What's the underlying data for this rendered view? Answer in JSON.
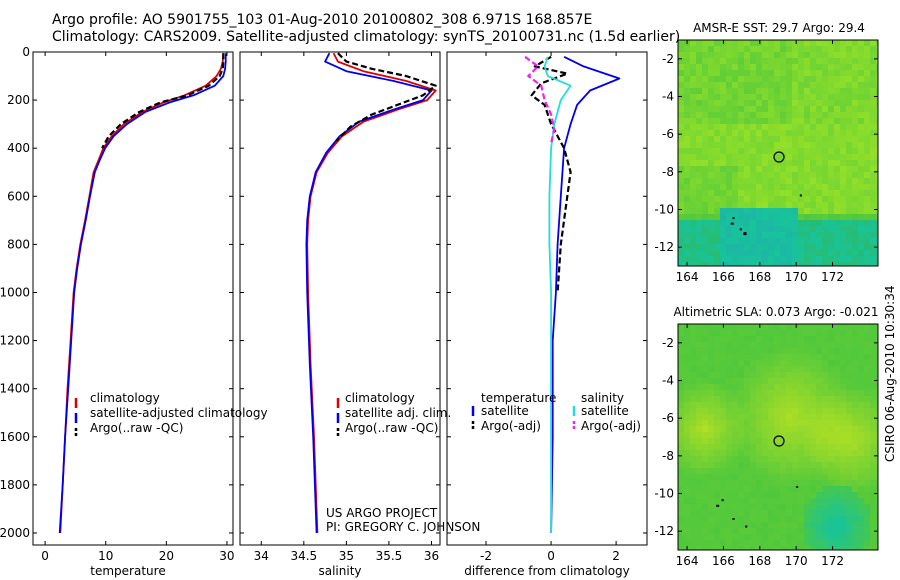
{
  "header": {
    "line1": "Argo profile: AO 5901755_103 01-Aug-2010 20100802_308 6.971S 168.857E",
    "line2": "Climatology: CARS2009. Satellite-adjusted climatology: synTS_20100731.nc (1.5d earlier)"
  },
  "credit": {
    "project": "US ARGO PROJECT",
    "pi": "PI: GREGORY C. JOHNSON",
    "stamp": "CSIRO 06-Aug-2010 10:30:34"
  },
  "colors": {
    "climatology": "#dd0000",
    "satellite_adjusted": "#0000ee",
    "argo": "#000000",
    "salinity_satellite": "#22dddd",
    "salinity_argo": "#ee22ee",
    "map_green": "#4fdb2c",
    "map_teal": "#18c49a"
  },
  "chart_data": [
    {
      "type": "line",
      "panel": "temperature",
      "xlabel": "temperature",
      "xlim": [
        -2,
        31
      ],
      "ylim": [
        2050,
        0
      ],
      "xticks": [
        "0",
        "10",
        "20",
        "30"
      ],
      "yticks": [
        "0",
        "200",
        "400",
        "600",
        "800",
        "1000",
        "1200",
        "1400",
        "1600",
        "1800",
        "2000"
      ],
      "grid": false,
      "legend": {
        "position": "bottom-right",
        "entries": [
          "climatology",
          "satellite-adjusted climatology",
          "Argo(..raw -QC)"
        ]
      },
      "series": [
        {
          "name": "climatology",
          "color": "#dd0000",
          "points": [
            [
              29.4,
              5
            ],
            [
              29.3,
              40
            ],
            [
              29.0,
              70
            ],
            [
              28.3,
              100
            ],
            [
              26.5,
              140
            ],
            [
              23.0,
              180
            ],
            [
              19.5,
              210
            ],
            [
              16.0,
              250
            ],
            [
              13.0,
              300
            ],
            [
              11.0,
              350
            ],
            [
              9.6,
              400
            ],
            [
              8.8,
              450
            ],
            [
              8.0,
              500
            ],
            [
              7.3,
              600
            ],
            [
              6.6,
              700
            ],
            [
              5.8,
              800
            ],
            [
              5.2,
              900
            ],
            [
              4.7,
              1000
            ],
            [
              4.2,
              1200
            ],
            [
              3.7,
              1400
            ],
            [
              3.3,
              1600
            ],
            [
              2.9,
              1800
            ],
            [
              2.5,
              2000
            ]
          ]
        },
        {
          "name": "satellite-adjusted climatology",
          "color": "#0000ee",
          "points": [
            [
              29.8,
              5
            ],
            [
              29.8,
              40
            ],
            [
              29.7,
              70
            ],
            [
              29.4,
              100
            ],
            [
              28.0,
              140
            ],
            [
              24.5,
              180
            ],
            [
              20.5,
              210
            ],
            [
              16.5,
              250
            ],
            [
              13.5,
              300
            ],
            [
              11.3,
              350
            ],
            [
              9.9,
              400
            ],
            [
              9.0,
              450
            ],
            [
              8.2,
              500
            ],
            [
              7.4,
              600
            ],
            [
              6.7,
              700
            ],
            [
              5.9,
              800
            ],
            [
              5.3,
              900
            ],
            [
              4.8,
              1000
            ],
            [
              4.3,
              1200
            ],
            [
              3.8,
              1400
            ],
            [
              3.3,
              1600
            ],
            [
              2.9,
              1800
            ],
            [
              2.4,
              2000
            ]
          ]
        },
        {
          "name": "Argo(..raw -QC)",
          "color": "#000000",
          "dashed": true,
          "points": [
            [
              29.4,
              5
            ],
            [
              29.4,
              40
            ],
            [
              29.3,
              70
            ],
            [
              28.8,
              100
            ],
            [
              27.0,
              140
            ],
            [
              23.5,
              180
            ],
            [
              19.0,
              210
            ],
            [
              15.5,
              250
            ],
            [
              12.5,
              300
            ],
            [
              10.5,
              350
            ],
            [
              9.4,
              400
            ]
          ]
        }
      ]
    },
    {
      "type": "line",
      "panel": "salinity",
      "xlabel": "salinity",
      "xlim": [
        33.75,
        36.1
      ],
      "ylim": [
        2050,
        0
      ],
      "xticks": [
        "34",
        "34.5",
        "35",
        "35.5",
        "36"
      ],
      "grid": false,
      "legend": {
        "position": "bottom-right",
        "entries": [
          "climatology",
          "satellite adj. clim.",
          "Argo(..raw -QC)"
        ]
      },
      "series": [
        {
          "name": "climatology",
          "color": "#dd0000",
          "points": [
            [
              34.85,
              5
            ],
            [
              34.9,
              40
            ],
            [
              35.2,
              80
            ],
            [
              35.7,
              120
            ],
            [
              36.05,
              160
            ],
            [
              35.95,
              200
            ],
            [
              35.6,
              240
            ],
            [
              35.2,
              290
            ],
            [
              34.95,
              350
            ],
            [
              34.78,
              420
            ],
            [
              34.65,
              500
            ],
            [
              34.58,
              600
            ],
            [
              34.55,
              700
            ],
            [
              34.54,
              800
            ],
            [
              34.55,
              1000
            ],
            [
              34.58,
              1300
            ],
            [
              34.62,
              1600
            ],
            [
              34.66,
              2000
            ]
          ]
        },
        {
          "name": "satellite adj. clim.",
          "color": "#0000ee",
          "points": [
            [
              34.8,
              5
            ],
            [
              34.75,
              40
            ],
            [
              35.0,
              80
            ],
            [
              35.55,
              120
            ],
            [
              36.0,
              160
            ],
            [
              35.9,
              200
            ],
            [
              35.55,
              240
            ],
            [
              35.15,
              290
            ],
            [
              34.92,
              350
            ],
            [
              34.76,
              420
            ],
            [
              34.64,
              500
            ],
            [
              34.57,
              600
            ],
            [
              34.54,
              700
            ],
            [
              34.53,
              800
            ],
            [
              34.54,
              1000
            ],
            [
              34.57,
              1300
            ],
            [
              34.61,
              1600
            ],
            [
              34.65,
              2000
            ]
          ]
        },
        {
          "name": "Argo(..raw -QC)",
          "color": "#000000",
          "dashed": true,
          "points": [
            [
              34.9,
              5
            ],
            [
              35.0,
              40
            ],
            [
              35.3,
              70
            ],
            [
              35.7,
              100
            ],
            [
              36.05,
              140
            ],
            [
              35.9,
              180
            ],
            [
              35.6,
              220
            ],
            [
              35.3,
              260
            ],
            [
              35.05,
              310
            ],
            [
              34.88,
              370
            ]
          ]
        }
      ]
    },
    {
      "type": "line",
      "panel": "difference",
      "xlabel": "difference from climatology",
      "xlim": [
        -3.2,
        2.95
      ],
      "ylim": [
        2050,
        0
      ],
      "xticks": [
        "-2",
        "0",
        "2"
      ],
      "grid": false,
      "legend": {
        "position": "bottom-right",
        "groups": [
          {
            "title": "temperature",
            "entries": [
              "satellite",
              "Argo(-adj)"
            ]
          },
          {
            "title": "salinity",
            "entries": [
              "satellite",
              "Argo(-adj)"
            ]
          }
        ]
      },
      "series": [
        {
          "name": "temperature satellite",
          "color": "#0000ee",
          "points": [
            [
              0.4,
              20
            ],
            [
              1.0,
              60
            ],
            [
              2.1,
              110
            ],
            [
              1.2,
              160
            ],
            [
              0.8,
              220
            ],
            [
              0.6,
              300
            ],
            [
              0.4,
              400
            ],
            [
              0.3,
              600
            ],
            [
              0.2,
              800
            ],
            [
              0.15,
              1000
            ],
            [
              0.05,
              1200
            ],
            [
              0.05,
              1400
            ],
            [
              0.05,
              1600
            ],
            [
              0.0,
              2000
            ]
          ]
        },
        {
          "name": "temperature Argo(-adj)",
          "color": "#000000",
          "dashed": true,
          "points": [
            [
              0,
              20
            ],
            [
              -0.5,
              60
            ],
            [
              0.5,
              90
            ],
            [
              -0.3,
              130
            ],
            [
              -0.6,
              180
            ],
            [
              -0.2,
              220
            ],
            [
              0.0,
              300
            ],
            [
              0.4,
              400
            ],
            [
              0.6,
              500
            ],
            [
              0.5,
              600
            ],
            [
              0.3,
              800
            ],
            [
              0.2,
              1000
            ]
          ]
        },
        {
          "name": "salinity satellite",
          "color": "#22dddd",
          "points": [
            [
              -0.1,
              20
            ],
            [
              -0.2,
              60
            ],
            [
              -0.1,
              100
            ],
            [
              0.6,
              140
            ],
            [
              0.3,
              200
            ],
            [
              0.1,
              300
            ],
            [
              0.0,
              400
            ],
            [
              -0.05,
              600
            ],
            [
              -0.05,
              800
            ],
            [
              0.0,
              1000
            ],
            [
              0.0,
              1400
            ],
            [
              0.0,
              2000
            ]
          ]
        },
        {
          "name": "salinity Argo(-adj)",
          "color": "#ee22ee",
          "dashed": true,
          "points": [
            [
              -0.8,
              20
            ],
            [
              -0.4,
              60
            ],
            [
              -0.7,
              100
            ],
            [
              -0.3,
              140
            ],
            [
              -0.2,
              200
            ],
            [
              0.0,
              260
            ],
            [
              0.1,
              320
            ],
            [
              0.0,
              380
            ]
          ]
        }
      ]
    },
    {
      "type": "heatmap",
      "panel": "sst-map",
      "title": "AMSR-E SST: 29.7 Argo: 29.4",
      "xlim": [
        163.5,
        174.5
      ],
      "ylim": [
        -13,
        -1
      ],
      "xticks": [
        "164",
        "166",
        "168",
        "170",
        "172"
      ],
      "yticks": [
        "-2",
        "-4",
        "-6",
        "-8",
        "-10",
        "-12"
      ],
      "marker": {
        "lon": 168.857,
        "lat": -6.971
      }
    },
    {
      "type": "heatmap",
      "panel": "sla-map",
      "title": "Altimetric SLA: 0.073 Argo: -0.021",
      "xlim": [
        163.5,
        174.5
      ],
      "ylim": [
        -13,
        -1
      ],
      "xticks": [
        "164",
        "166",
        "168",
        "170",
        "172"
      ],
      "yticks": [
        "-2",
        "-4",
        "-6",
        "-8",
        "-10",
        "-12"
      ],
      "marker": {
        "lon": 168.857,
        "lat": -6.971
      }
    }
  ]
}
